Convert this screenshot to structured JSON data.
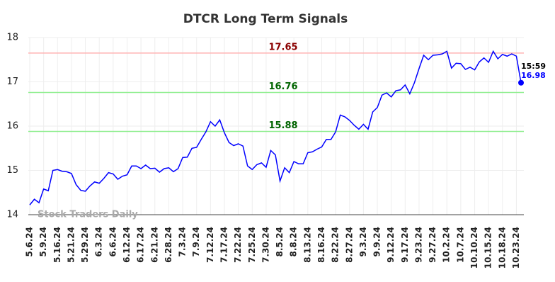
{
  "chart_data": {
    "type": "line",
    "title": "DTCR Long Term Signals",
    "categories": [
      "5.6.24",
      null,
      null,
      "5.9.24",
      null,
      null,
      "5.16.24",
      null,
      null,
      "5.21.24",
      null,
      null,
      "5.29.24",
      null,
      null,
      "6.3.24",
      null,
      null,
      "6.6.24",
      null,
      null,
      "6.12.24",
      null,
      null,
      "6.17.24",
      null,
      null,
      "6.21.24",
      null,
      null,
      "6.28.24",
      null,
      null,
      "7.3.24",
      null,
      null,
      "7.9.24",
      null,
      null,
      "7.12.24",
      null,
      null,
      "7.17.24",
      null,
      null,
      "7.22.24",
      null,
      null,
      "7.25.24",
      null,
      null,
      "7.30.24",
      null,
      null,
      "8.5.24",
      null,
      null,
      "8.8.24",
      null,
      null,
      "8.13.24",
      null,
      null,
      "8.16.24",
      null,
      null,
      "8.22.24",
      null,
      null,
      "8.27.24",
      null,
      null,
      "9.3.24",
      null,
      null,
      "9.9.24",
      null,
      null,
      "9.12.24",
      null,
      null,
      "9.17.24",
      null,
      null,
      "9.23.24",
      null,
      null,
      "9.27.24",
      null,
      null,
      "10.2.24",
      null,
      null,
      "10.7.24",
      null,
      null,
      "10.10.24",
      null,
      null,
      "10.15.24",
      null,
      null,
      "10.18.24",
      null,
      null,
      "10.23.24",
      null
    ],
    "series": [
      {
        "name": "DTCR",
        "color": "#0000ff",
        "values": [
          14.22,
          14.35,
          14.27,
          14.58,
          14.54,
          15.0,
          15.02,
          14.98,
          14.97,
          14.93,
          14.68,
          14.55,
          14.53,
          14.65,
          14.74,
          14.71,
          14.82,
          14.95,
          14.92,
          14.8,
          14.87,
          14.9,
          15.1,
          15.1,
          15.04,
          15.12,
          15.04,
          15.05,
          14.96,
          15.04,
          15.06,
          14.97,
          15.04,
          15.29,
          15.3,
          15.5,
          15.52,
          15.7,
          15.87,
          16.1,
          16.0,
          16.14,
          15.85,
          15.63,
          15.56,
          15.6,
          15.55,
          15.1,
          15.02,
          15.13,
          15.17,
          15.07,
          15.45,
          15.35,
          14.76,
          15.06,
          14.95,
          15.2,
          15.15,
          15.15,
          15.4,
          15.42,
          15.48,
          15.53,
          15.7,
          15.7,
          15.87,
          16.25,
          16.21,
          16.13,
          16.02,
          15.93,
          16.04,
          15.93,
          16.32,
          16.42,
          16.7,
          16.75,
          16.66,
          16.8,
          16.82,
          16.93,
          16.73,
          16.98,
          17.3,
          17.6,
          17.5,
          17.6,
          17.61,
          17.63,
          17.69,
          17.31,
          17.42,
          17.41,
          17.28,
          17.33,
          17.27,
          17.45,
          17.54,
          17.44,
          17.69,
          17.52,
          17.62,
          17.58,
          17.63,
          17.58,
          16.98
        ]
      }
    ],
    "ylim": [
      14,
      18
    ],
    "yticks": [
      14,
      15,
      16,
      17,
      18
    ],
    "grid": true,
    "hlines": [
      {
        "value": 17.65,
        "color": "#ffb3b3",
        "label_color": "#8b0000"
      },
      {
        "value": 16.76,
        "color": "#90ee90",
        "label_color": "#006400"
      },
      {
        "value": 15.88,
        "color": "#90ee90",
        "label_color": "#006400"
      }
    ],
    "last_time": "15:59",
    "watermark": "Stock Traders Daily"
  }
}
